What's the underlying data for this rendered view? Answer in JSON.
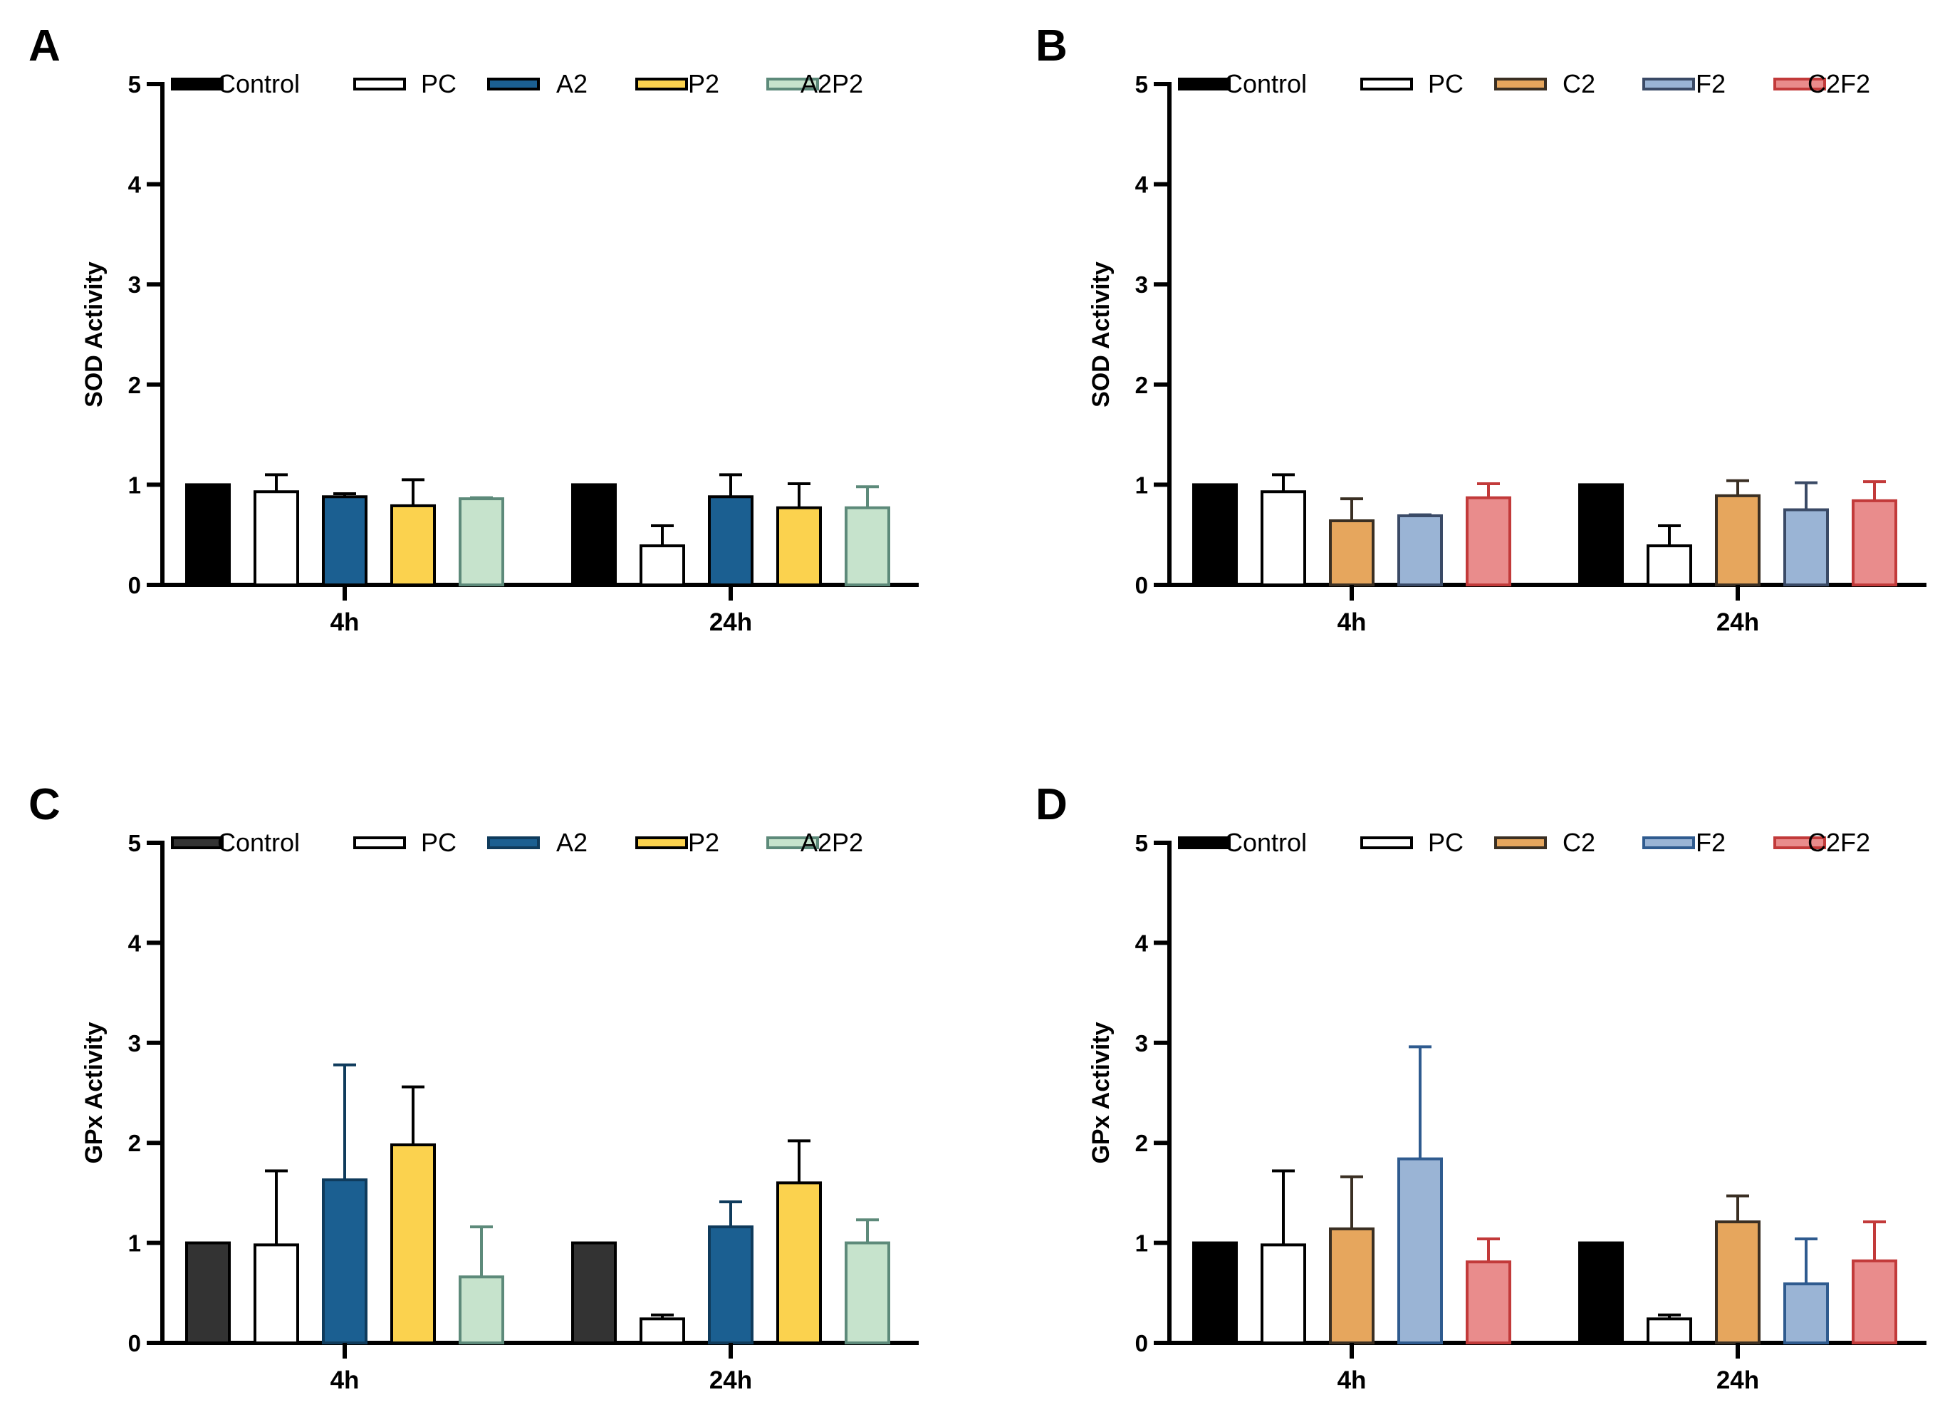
{
  "chart_data": [
    {
      "panel": "A",
      "type": "bar",
      "categories": [
        "4h",
        "24h"
      ],
      "ylabel": "SOD Activity",
      "ylim": [
        0,
        5
      ],
      "yticks": [
        0,
        1,
        2,
        3,
        4,
        5
      ],
      "legend_position": "top",
      "series": [
        {
          "name": "Control",
          "fill": "#000000",
          "stroke": "#000000",
          "values": [
            1.0,
            1.0
          ],
          "errors": [
            0,
            0
          ]
        },
        {
          "name": "PC",
          "fill": "#ffffff",
          "stroke": "#000000",
          "values": [
            0.93,
            0.39
          ],
          "errors": [
            0.17,
            0.2
          ]
        },
        {
          "name": "A2",
          "fill": "#1b5f91",
          "stroke": "#000000",
          "values": [
            0.88,
            0.88
          ],
          "errors": [
            0.03,
            0.22
          ]
        },
        {
          "name": "P2",
          "fill": "#fbd24e",
          "stroke": "#000000",
          "values": [
            0.79,
            0.77
          ],
          "errors": [
            0.26,
            0.24
          ]
        },
        {
          "name": "A2P2",
          "fill": "#c6e3cc",
          "stroke": "#5d8a7a",
          "values": [
            0.86,
            0.77
          ],
          "errors": [
            0.01,
            0.21
          ]
        }
      ]
    },
    {
      "panel": "B",
      "type": "bar",
      "categories": [
        "4h",
        "24h"
      ],
      "ylabel": "SOD Activity",
      "ylim": [
        0,
        5
      ],
      "yticks": [
        0,
        1,
        2,
        3,
        4,
        5
      ],
      "legend_position": "top",
      "series": [
        {
          "name": "Control",
          "fill": "#000000",
          "stroke": "#000000",
          "values": [
            1.0,
            1.0
          ],
          "errors": [
            0,
            0
          ]
        },
        {
          "name": "PC",
          "fill": "#ffffff",
          "stroke": "#000000",
          "values": [
            0.93,
            0.39
          ],
          "errors": [
            0.17,
            0.2
          ]
        },
        {
          "name": "C2",
          "fill": "#e6a65d",
          "stroke": "#3a2f23",
          "values": [
            0.64,
            0.89
          ],
          "errors": [
            0.22,
            0.15
          ]
        },
        {
          "name": "F2",
          "fill": "#9ab4d5",
          "stroke": "#3a4a66",
          "values": [
            0.69,
            0.75
          ],
          "errors": [
            0.01,
            0.27
          ]
        },
        {
          "name": "C2F2",
          "fill": "#e98c8c",
          "stroke": "#c23a3a",
          "values": [
            0.87,
            0.84
          ],
          "errors": [
            0.14,
            0.19
          ]
        }
      ]
    },
    {
      "panel": "C",
      "type": "bar",
      "categories": [
        "4h",
        "24h"
      ],
      "ylabel": "GPx Activity",
      "ylim": [
        0,
        5
      ],
      "yticks": [
        0,
        1,
        2,
        3,
        4,
        5
      ],
      "legend_position": "top",
      "series": [
        {
          "name": "Control",
          "fill": "#333333",
          "stroke": "#000000",
          "values": [
            1.0,
            1.0
          ],
          "errors": [
            0,
            0
          ]
        },
        {
          "name": "PC",
          "fill": "#ffffff",
          "stroke": "#000000",
          "values": [
            0.98,
            0.24
          ],
          "errors": [
            0.74,
            0.04
          ]
        },
        {
          "name": "A2",
          "fill": "#1b5f91",
          "stroke": "#0f3b5c",
          "values": [
            1.63,
            1.16
          ],
          "errors": [
            1.15,
            0.25
          ]
        },
        {
          "name": "P2",
          "fill": "#fbd24e",
          "stroke": "#000000",
          "values": [
            1.98,
            1.6
          ],
          "errors": [
            0.58,
            0.42
          ]
        },
        {
          "name": "A2P2",
          "fill": "#c6e3cc",
          "stroke": "#5d8a7a",
          "values": [
            0.66,
            1.0
          ],
          "errors": [
            0.5,
            0.23
          ]
        }
      ]
    },
    {
      "panel": "D",
      "type": "bar",
      "categories": [
        "4h",
        "24h"
      ],
      "ylabel": "GPx Activity",
      "ylim": [
        0,
        5
      ],
      "yticks": [
        0,
        1,
        2,
        3,
        4,
        5
      ],
      "legend_position": "top",
      "series": [
        {
          "name": "Control",
          "fill": "#000000",
          "stroke": "#000000",
          "values": [
            1.0,
            1.0
          ],
          "errors": [
            0,
            0
          ]
        },
        {
          "name": "PC",
          "fill": "#ffffff",
          "stroke": "#000000",
          "values": [
            0.98,
            0.24
          ],
          "errors": [
            0.74,
            0.04
          ]
        },
        {
          "name": "C2",
          "fill": "#e6a65d",
          "stroke": "#3a2f23",
          "values": [
            1.14,
            1.21
          ],
          "errors": [
            0.52,
            0.26
          ]
        },
        {
          "name": "F2",
          "fill": "#9ab4d5",
          "stroke": "#2f5b8f",
          "values": [
            1.84,
            0.59
          ],
          "errors": [
            1.12,
            0.45
          ]
        },
        {
          "name": "C2F2",
          "fill": "#e98c8c",
          "stroke": "#c23a3a",
          "values": [
            0.81,
            0.82
          ],
          "errors": [
            0.23,
            0.39
          ]
        }
      ]
    }
  ]
}
